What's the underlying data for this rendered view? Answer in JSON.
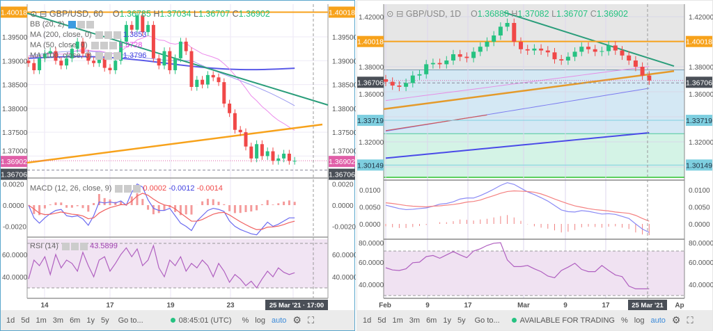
{
  "left": {
    "title": "GBP/USD, 60",
    "ohlc": {
      "o": "1.36785",
      "h": "1.37034",
      "l": "1.36707",
      "c": "1.36902"
    },
    "indicators": [
      {
        "label": "BB (20, 2)",
        "value": ""
      },
      {
        "label": "MA (200, close, 0)",
        "value": "1.3853"
      },
      {
        "label": "MA (50, close, 0)",
        "value": "1.3728"
      },
      {
        "label": "MA (100, close, 0)",
        "value": "1.3796"
      }
    ],
    "macd": {
      "label": "MACD (12, 26, close, 9)",
      "v1": "0.0002",
      "v2": "-0.0012",
      "v3": "-0.0014"
    },
    "rsi": {
      "label": "RSI (14)",
      "value": "43.5899"
    },
    "price_ticks": [
      "1.39500",
      "1.39000",
      "1.38500",
      "1.38000",
      "1.37500",
      "1.37000"
    ],
    "macd_ticks": [
      "0.0020",
      "0.0000",
      "-0.0020"
    ],
    "rsi_ticks": [
      "60.0000",
      "40.0000"
    ],
    "markers": {
      "resistance": "1.40018",
      "last": "1.36902",
      "low": "1.36706"
    },
    "dates": [
      "14",
      "17",
      "19",
      "23"
    ],
    "crosshair_label": "25 Mar '21 · 17:00",
    "closes": [
      1.3895,
      1.388,
      1.3905,
      1.3915,
      1.392,
      1.39,
      1.389,
      1.3905,
      1.3925,
      1.394,
      1.3915,
      1.39,
      1.3895,
      1.3905,
      1.3885,
      1.388,
      1.39,
      1.394,
      1.3975,
      1.3965,
      1.3995,
      1.396,
      1.3975,
      1.3905,
      1.389,
      1.392,
      1.388,
      1.3905,
      1.394,
      1.392,
      1.3845,
      1.386,
      1.385,
      1.387,
      1.3865,
      1.3855,
      1.381,
      1.379,
      1.3755,
      1.375,
      1.372,
      1.3695,
      1.3725,
      1.37,
      1.371,
      1.369,
      1.3695,
      1.3705,
      1.369,
      1.369
    ],
    "macd_line": [
      0,
      -0.0012,
      -0.0017,
      -0.0012,
      -0.0008,
      -0.0005,
      -0.0004,
      -0.001,
      -0.0011,
      -0.001,
      -0.0013,
      -0.0019,
      -0.001,
      0.0003,
      0.0002,
      0.0003,
      0.0002,
      0.0004,
      0,
      0.0012,
      0.002,
      0.0017,
      0.0005,
      -0.0003,
      -0.0005,
      -0.0005,
      -0.0003,
      -0.001,
      -0.0017,
      -0.002,
      -0.0024,
      -0.0015,
      -0.001,
      -0.0005,
      -0.0003,
      -0.0004,
      -0.0006,
      -0.0015,
      -0.002,
      -0.0023,
      -0.0025,
      -0.0027,
      -0.0028,
      -0.0022,
      -0.0016,
      -0.002,
      -0.0018,
      -0.0015,
      -0.0012,
      -0.0012
    ],
    "rsi_line": [
      38,
      55,
      50,
      58,
      42,
      60,
      48,
      55,
      52,
      45,
      62,
      50,
      40,
      55,
      58,
      45,
      52,
      60,
      66,
      58,
      65,
      50,
      55,
      68,
      48,
      40,
      55,
      50,
      58,
      45,
      52,
      48,
      55,
      50,
      40,
      52,
      45,
      35,
      42,
      38,
      32,
      36,
      30,
      38,
      45,
      40,
      48,
      44,
      42,
      43.6
    ]
  },
  "right": {
    "title": "GBP/USD, 1D",
    "ohlc": {
      "o": "1.36888",
      "h": "1.37082",
      "l": "1.36707",
      "c": "1.36902"
    },
    "price_ticks": [
      "1.42000",
      "1.38000",
      "1.36000",
      "1.32000"
    ],
    "macd_ticks": [
      "0.0100",
      "0.0050",
      "0.0000"
    ],
    "rsi_ticks": [
      "80.0000",
      "60.0000",
      "40.0000"
    ],
    "markers": {
      "resistance": "1.40018",
      "low": "1.36706",
      "level1": "1.33719",
      "level2": "1.30149"
    },
    "dates": [
      "Feb",
      "9",
      "17",
      "Mar",
      "9",
      "17",
      "Ap"
    ],
    "crosshair_label": "25 Mar '21",
    "closes": [
      1.368,
      1.365,
      1.364,
      1.367,
      1.373,
      1.374,
      1.382,
      1.383,
      1.382,
      1.385,
      1.39,
      1.388,
      1.387,
      1.392,
      1.396,
      1.4,
      1.405,
      1.412,
      1.415,
      1.4,
      1.394,
      1.393,
      1.3945,
      1.393,
      1.3915,
      1.386,
      1.385,
      1.388,
      1.392,
      1.396,
      1.394,
      1.392,
      1.3925,
      1.397,
      1.393,
      1.389,
      1.385,
      1.38,
      1.373,
      1.369
    ],
    "macd_line": [
      0.0055,
      0.005,
      0.0045,
      0.0042,
      0.0043,
      0.0045,
      0.0047,
      0.0052,
      0.0058,
      0.006,
      0.0065,
      0.0073,
      0.0076,
      0.0076,
      0.0083,
      0.0092,
      0.0102,
      0.0113,
      0.0121,
      0.0116,
      0.0105,
      0.0094,
      0.0086,
      0.0077,
      0.0067,
      0.0054,
      0.0041,
      0.0036,
      0.0035,
      0.0039,
      0.0037,
      0.0033,
      0.0029,
      0.003,
      0.0028,
      0.0022,
      0.0016,
      0,
      -0.0015,
      -0.0025
    ],
    "signal_line": [
      0.0062,
      0.006,
      0.0057,
      0.0054,
      0.0052,
      0.0051,
      0.005,
      0.0052,
      0.0053,
      0.0055,
      0.0057,
      0.006,
      0.0064,
      0.0066,
      0.007,
      0.0077,
      0.0083,
      0.009,
      0.0095,
      0.0097,
      0.0096,
      0.0095,
      0.0093,
      0.0088,
      0.0081,
      0.0073,
      0.0066,
      0.0059,
      0.0053,
      0.0049,
      0.0045,
      0.0042,
      0.004,
      0.0038,
      0.0035,
      0.0033,
      0.0031,
      0.0025,
      0.0016,
      0.0008
    ],
    "rsi_line": [
      55,
      53,
      52.5,
      54,
      59.5,
      60,
      65,
      66,
      63.5,
      66.5,
      69.5,
      66.5,
      64,
      70,
      72,
      75,
      77,
      77.5,
      62,
      56,
      56,
      57,
      54,
      51.5,
      47.5,
      46,
      52.5,
      55.5,
      59,
      53.5,
      51.5,
      51.5,
      57,
      52.5,
      48.5,
      47,
      38.5,
      36,
      36,
      36
    ]
  },
  "toolbar": {
    "ranges": [
      "1d",
      "5d",
      "1m",
      "3m",
      "6m",
      "1y",
      "5y"
    ],
    "goto": "Go to...",
    "clock": "08:45:01 (UTC)",
    "status": "AVAILABLE FOR TRADING",
    "percent": "%",
    "log": "log",
    "auto": "auto"
  },
  "colors": {
    "up": "#26c281",
    "down": "#f04848",
    "orange": "#f7a21b",
    "pink": "#e05fa8",
    "dark": "#4a4f57",
    "cyan": "#7ecfe0"
  }
}
